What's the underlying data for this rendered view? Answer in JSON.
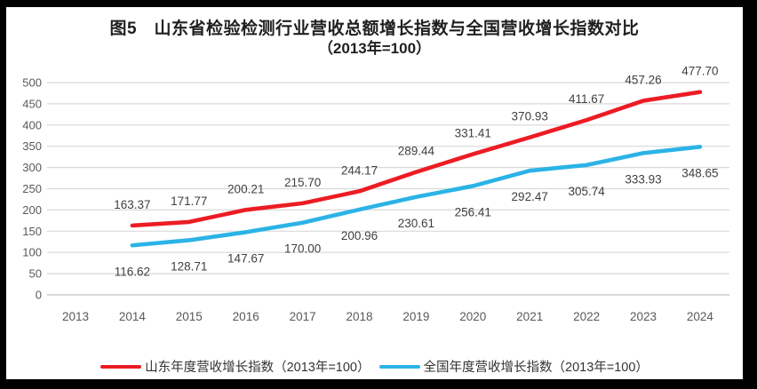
{
  "frame": {
    "border_color": "#000000",
    "canvas_color": "#ffffff"
  },
  "title": {
    "line1": "图5　山东省检验检测行业营收总额增长指数与全国营收增长指数对比",
    "line2": "（2013年=100）"
  },
  "chart_data": {
    "type": "line",
    "categories": [
      "2013",
      "2014",
      "2015",
      "2016",
      "2017",
      "2018",
      "2019",
      "2020",
      "2021",
      "2022",
      "2023",
      "2024"
    ],
    "series": [
      {
        "name": "山东年度营收增长指数（2013年=100）",
        "color": "#EC1C24",
        "start_category": "2014",
        "values": [
          163.37,
          171.77,
          200.21,
          215.7,
          244.17,
          289.44,
          331.41,
          370.93,
          411.67,
          457.26,
          477.7
        ],
        "label_position": "above"
      },
      {
        "name": "全国年度营收增长指数（2013年=100）",
        "color": "#2BB3E6",
        "start_category": "2014",
        "values": [
          116.62,
          128.71,
          147.67,
          170.0,
          200.96,
          230.61,
          256.41,
          292.47,
          305.74,
          333.93,
          348.65
        ],
        "label_position": "below"
      }
    ],
    "ylim": [
      0,
      500
    ],
    "yticks": [
      0,
      50,
      100,
      150,
      200,
      250,
      300,
      350,
      400,
      450,
      500
    ],
    "grid": "horizontal",
    "gridline_color": "#D9D9D9",
    "axis_line_color": "#BFBFBF",
    "axis_label_color": "#595959",
    "data_label_color": "#3f3f3f",
    "legend_position": "bottom",
    "xlabel": "",
    "ylabel": ""
  }
}
